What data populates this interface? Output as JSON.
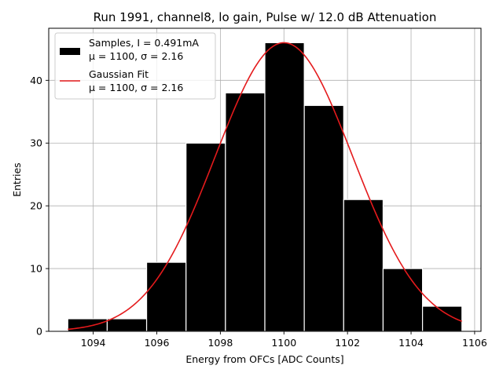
{
  "chart_data": {
    "type": "bar",
    "title": "Run 1991, channel8, lo gain, Pulse w/ 12.0 dB Attenuation",
    "xlabel": "Energy from OFCs [ADC Counts]",
    "ylabel": "Entries",
    "xlim": [
      1092.6,
      1106.2
    ],
    "ylim": [
      0,
      48.3
    ],
    "xticks": [
      1094,
      1096,
      1098,
      1100,
      1102,
      1104,
      1106
    ],
    "xtick_labels": [
      "1094",
      "1096",
      "1098",
      "1100",
      "1102",
      "1104",
      "1106"
    ],
    "yticks": [
      0,
      10,
      20,
      30,
      40
    ],
    "ytick_labels": [
      "0",
      "10",
      "20",
      "30",
      "40"
    ],
    "grid": true,
    "legend_position": "top-left",
    "bin_edges": [
      1093.2,
      1094.44,
      1095.68,
      1096.92,
      1098.16,
      1099.4,
      1100.64,
      1101.88,
      1103.12,
      1104.36,
      1105.6
    ],
    "bin_ranges": [
      [
        1093.2,
        1094.44
      ],
      [
        1094.44,
        1095.68
      ],
      [
        1095.68,
        1096.92
      ],
      [
        1096.92,
        1098.16
      ],
      [
        1098.16,
        1099.4
      ],
      [
        1099.4,
        1100.64
      ],
      [
        1100.64,
        1101.88
      ],
      [
        1101.88,
        1103.12
      ],
      [
        1103.12,
        1104.36
      ],
      [
        1104.36,
        1105.6
      ]
    ],
    "values": [
      2,
      2,
      11,
      30,
      38,
      46,
      36,
      21,
      10,
      4
    ],
    "series": [
      {
        "name": "Samples, I = 0.491mA",
        "name_line2": "μ = 1100, σ = 2.16",
        "kind": "histogram",
        "color": "#000000",
        "edge_color": "#ffffff"
      },
      {
        "name": "Gaussian Fit",
        "name_line2": "μ = 1100, σ = 2.16",
        "kind": "line",
        "color": "#e41a1c",
        "mu": 1100.0,
        "sigma": 2.16,
        "amplitude": 46.0,
        "x_range": [
          1093.2,
          1105.6
        ]
      }
    ]
  }
}
